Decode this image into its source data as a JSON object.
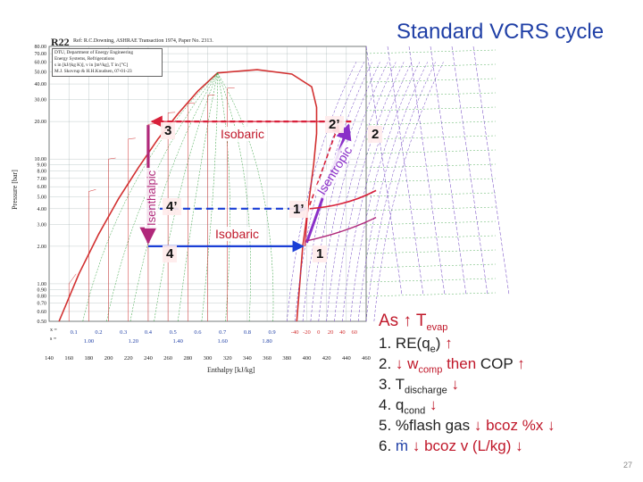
{
  "slide": {
    "title": "Standard VCRS cycle",
    "page_number": "27"
  },
  "chart_header": {
    "refrigerant": "R22",
    "reference": "Ref: R.C.Downing, ASHRAE Transaction 1974, Paper No. 2313.",
    "credit_lines": [
      "DTU, Department of Energy Engineering",
      "Energy Systems, Refrigerations",
      "s in [kJ/(kg K)], v in [m³/kg], T in [°C]",
      "M.J. Skovrup & H.H.Knudsen, 07-01-23"
    ]
  },
  "chart_data": {
    "type": "p-h diagram",
    "y_axis_label": "Pressure [bar]",
    "x_axis_label": "Enthalpy [kJ/kg]",
    "y_ticks": [
      "80.00",
      "70.00",
      "60.00",
      "50.00",
      "40.00",
      "30.00",
      "20.00",
      "10.00",
      "9.00",
      "8.00",
      "7.00",
      "6.00",
      "5.00",
      "4.00",
      "3.00",
      "2.00",
      "1.00",
      "0.90",
      "0.80",
      "0.70",
      "0.60",
      "0.50"
    ],
    "x_ticks": [
      "140",
      "160",
      "180",
      "200",
      "220",
      "240",
      "260",
      "280",
      "300",
      "320",
      "340",
      "360",
      "380",
      "400",
      "420",
      "440",
      "460"
    ],
    "quality_row_label": "x =",
    "quality_ticks": [
      "0.1",
      "0.2",
      "0.3",
      "0.4",
      "0.5",
      "0.6",
      "0.7",
      "0.8",
      "0.9"
    ],
    "entropy_row_label": "s =",
    "entropy_ticks": [
      "1.00",
      "1.20",
      "1.40",
      "1.60",
      "1.80"
    ],
    "saturated_vapor_temp_ticks": [
      "-40",
      "-20",
      "0",
      "20",
      "40",
      "60"
    ],
    "ideal_cycle_points": [
      {
        "label": "1",
        "h": 400,
        "p": 2.0
      },
      {
        "label": "2",
        "h": 445,
        "p": 20.0
      },
      {
        "label": "3",
        "h": 240,
        "p": 20.0
      },
      {
        "label": "4",
        "h": 240,
        "p": 2.0
      }
    ],
    "modified_cycle_points": [
      {
        "label": "1’",
        "h": 403,
        "p": 4.0
      },
      {
        "label": "2’",
        "h": 432,
        "p": 20.0
      },
      {
        "label": "3",
        "h": 240,
        "p": 20.0
      },
      {
        "label": "4’",
        "h": 240,
        "p": 4.0
      }
    ],
    "process_labels": {
      "condensation": "Isobaric",
      "evaporation": "Isobaric",
      "compression": "Isentropic",
      "expansion": "Isenthalpic"
    }
  },
  "effects": {
    "heading_prefix": "As",
    "heading_var": "T",
    "heading_sub": "evap",
    "items": [
      {
        "num": "1.",
        "text": "RE(q",
        "sub": "e",
        "tail": ")",
        "arrow": "up"
      },
      {
        "num": "2.",
        "arrow_pre": "down",
        "text": "w",
        "sub": "comp",
        "then": "then",
        "then2": "COP",
        "arrow": "up"
      },
      {
        "num": "3.",
        "text": "T",
        "sub": "discharge",
        "arrow": "down"
      },
      {
        "num": "4.",
        "text": "q",
        "sub": "cond",
        "arrow": "down"
      },
      {
        "num": "5.",
        "text": "%flash gas",
        "mid": "bcoz %x",
        "arrow": "down"
      },
      {
        "num": "6.",
        "text": "ṁ",
        "mid": "bcoz v (L/kg)",
        "arrow": "down"
      }
    ]
  },
  "colors": {
    "title": "#1f3fa6",
    "accent_red": "#c0182a",
    "cycle_blue": "#1a3fd6",
    "cycle_magenta": "#b0287a",
    "cycle_red": "#d8213a",
    "compression_purple": "#8a2fc8",
    "grid_green": "#2e9e3a",
    "grid_red": "#d23030",
    "grid_purple": "#6a3cc0"
  }
}
